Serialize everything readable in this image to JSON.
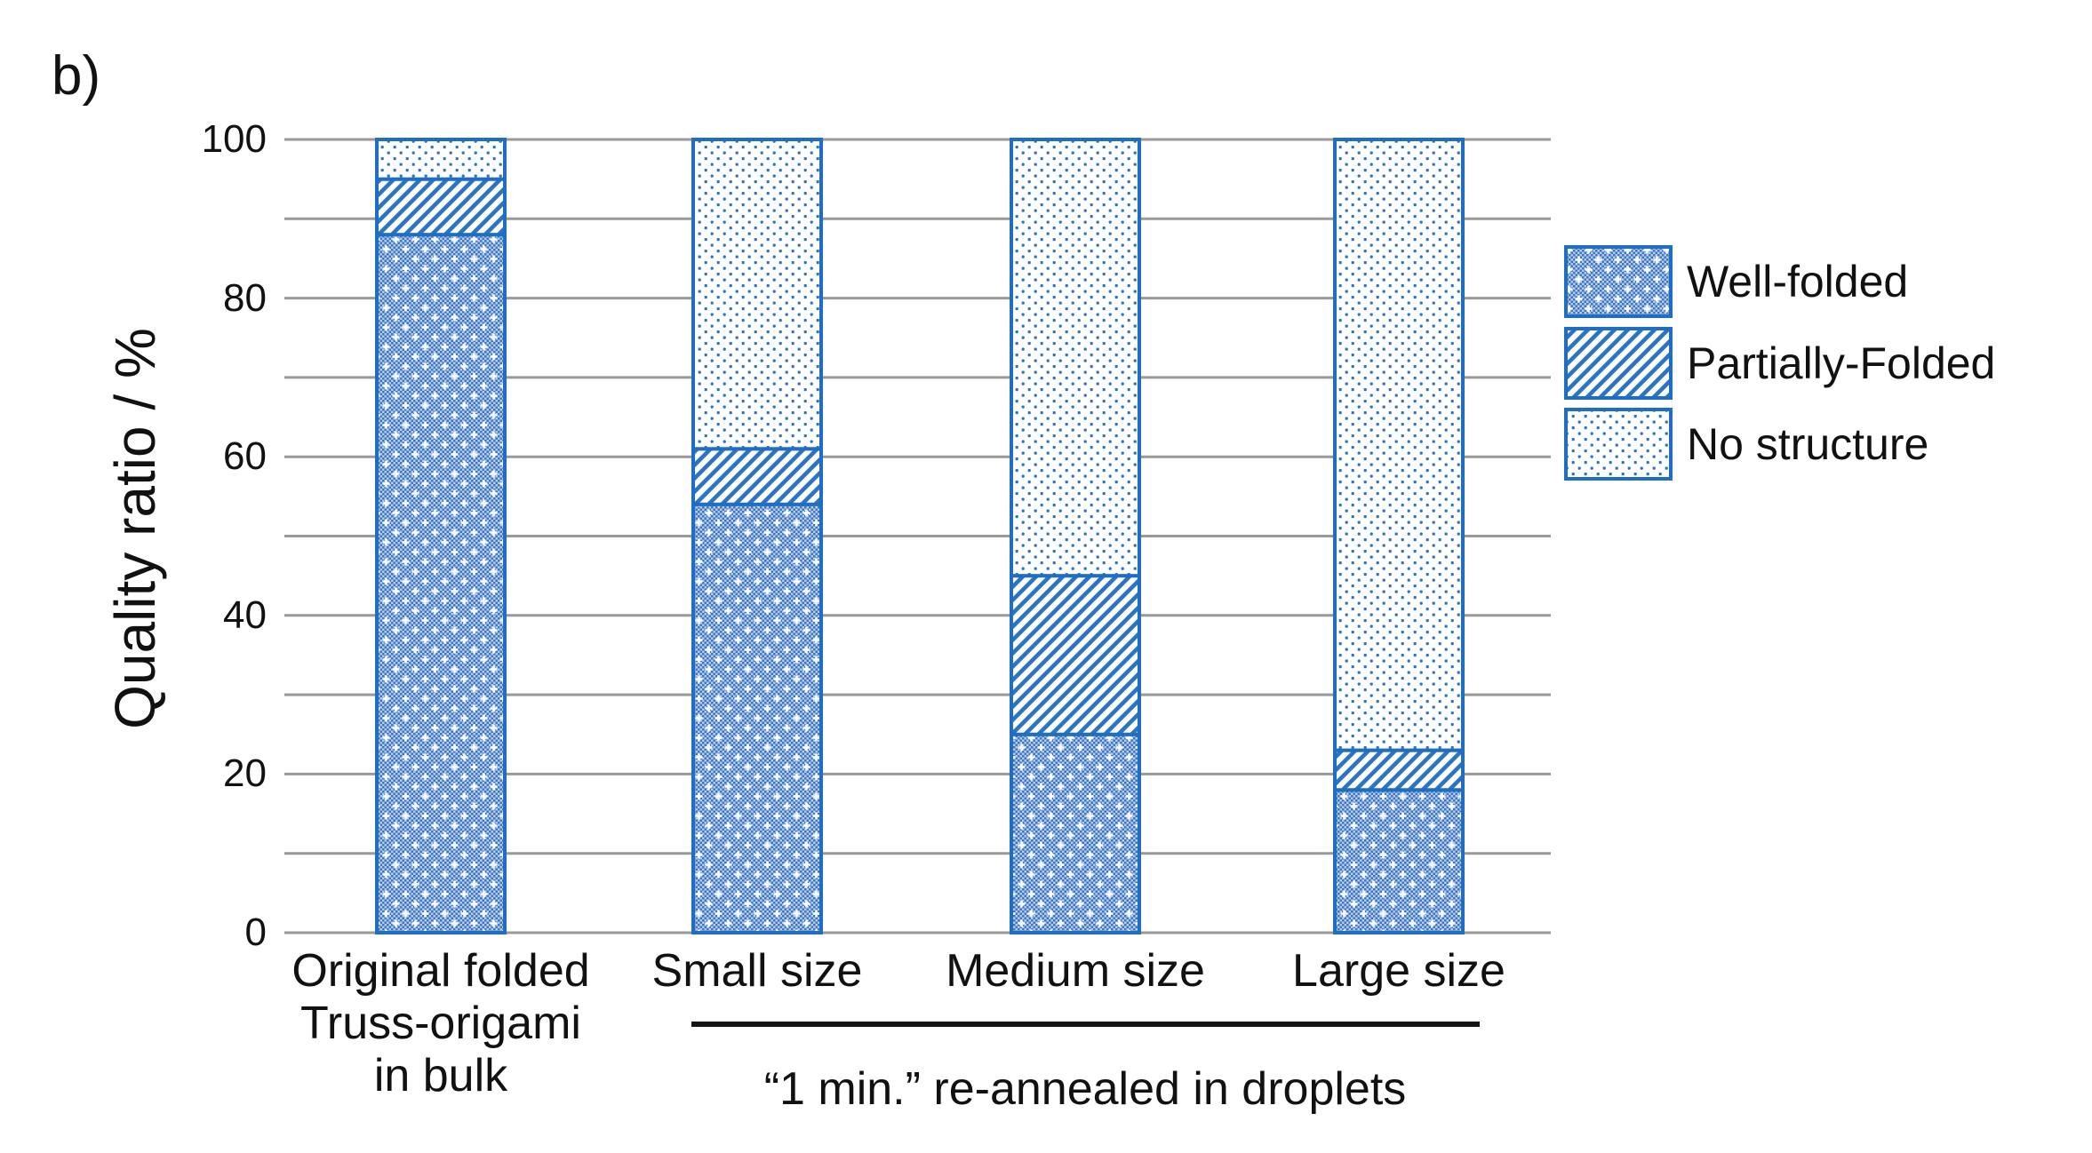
{
  "panel_label": "b)",
  "axis": {
    "ylabel": "Quality ratio / %"
  },
  "legend": {
    "items": [
      {
        "label": "Well-folded",
        "pattern": "dense-dot-grid"
      },
      {
        "label": "Partially-Folded",
        "pattern": "diagonal-hatch"
      },
      {
        "label": "No structure",
        "pattern": "sparse-dots"
      }
    ]
  },
  "colors": {
    "accent_blue": "#1f6ec2",
    "pattern_blue": "#2b74c4",
    "grid_gray": "#999999",
    "text": "#111111",
    "underline_black": "#151515"
  },
  "chart_data": {
    "type": "bar",
    "stacked": true,
    "title": "",
    "xlabel": "",
    "ylabel": "Quality ratio / %",
    "categories": [
      "Original folded\nTruss-origami\nin bulk",
      "Small size",
      "Medium size",
      "Large size"
    ],
    "series": [
      {
        "name": "Well-folded",
        "values": [
          88,
          54,
          25,
          18
        ]
      },
      {
        "name": "Partially-Folded",
        "values": [
          7,
          7,
          20,
          5
        ]
      },
      {
        "name": "No structure",
        "values": [
          5,
          39,
          55,
          77
        ]
      }
    ],
    "ylim": [
      0,
      100
    ],
    "yticks": [
      0,
      20,
      40,
      60,
      80,
      100
    ],
    "gridline_step": 10,
    "grid": true,
    "legend_position": "right",
    "group_annotation": {
      "text": "“1 min.” re-annealed in droplets",
      "categories": [
        "Small size",
        "Medium size",
        "Large size"
      ]
    }
  }
}
